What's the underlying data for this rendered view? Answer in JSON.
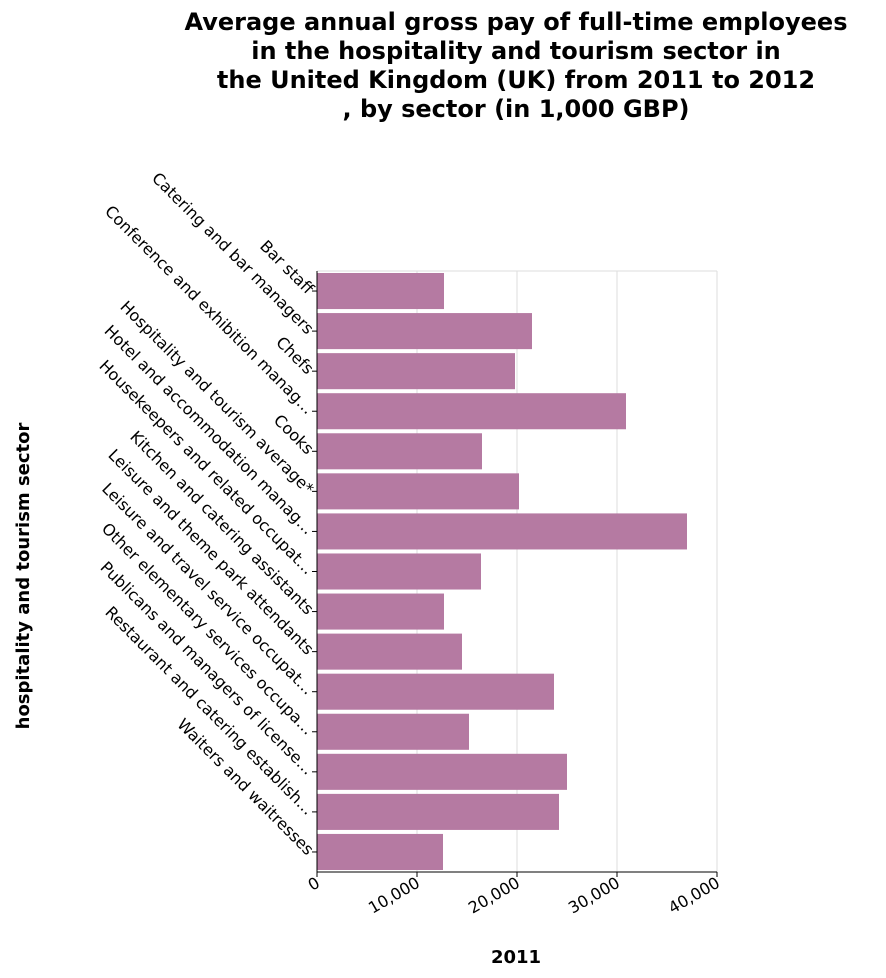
{
  "chart_data": {
    "type": "bar",
    "orientation": "horizontal",
    "title_lines": [
      "Average annual gross pay of full-time employees",
      "in the hospitality and tourism sector in",
      "the United Kingdom (UK) from 2011 to 2012",
      ", by sector (in 1,000 GBP)"
    ],
    "xlabel": "2011",
    "ylabel": "hospitality and tourism sector",
    "categories": [
      "Bar staff",
      "Catering and bar managers",
      "Chefs",
      "Conference and exhibition manag…",
      "Cooks",
      "Hospitality and tourism average*",
      "Hotel and accommodation manag…",
      "Housekeepers and related occupat…",
      "Kitchen and catering assistants",
      "Leisure and theme park attendants",
      "Leisure and travel service occupat…",
      "Other elementary services occupa…",
      "Publicans and managers of license…",
      "Restaurant and catering establish…",
      "Waiters and waitresses"
    ],
    "values": [
      12700,
      21500,
      19800,
      30900,
      16500,
      20200,
      37000,
      16400,
      12700,
      14500,
      23700,
      15200,
      25000,
      24200,
      12600
    ],
    "xlim": [
      0,
      40000
    ],
    "xticks": [
      "0",
      "10,000",
      "20,000",
      "30,000",
      "40,000"
    ],
    "xtick_values": [
      0,
      10000,
      20000,
      30000,
      40000
    ],
    "grid": true,
    "bar_color": "#b57aa2"
  }
}
